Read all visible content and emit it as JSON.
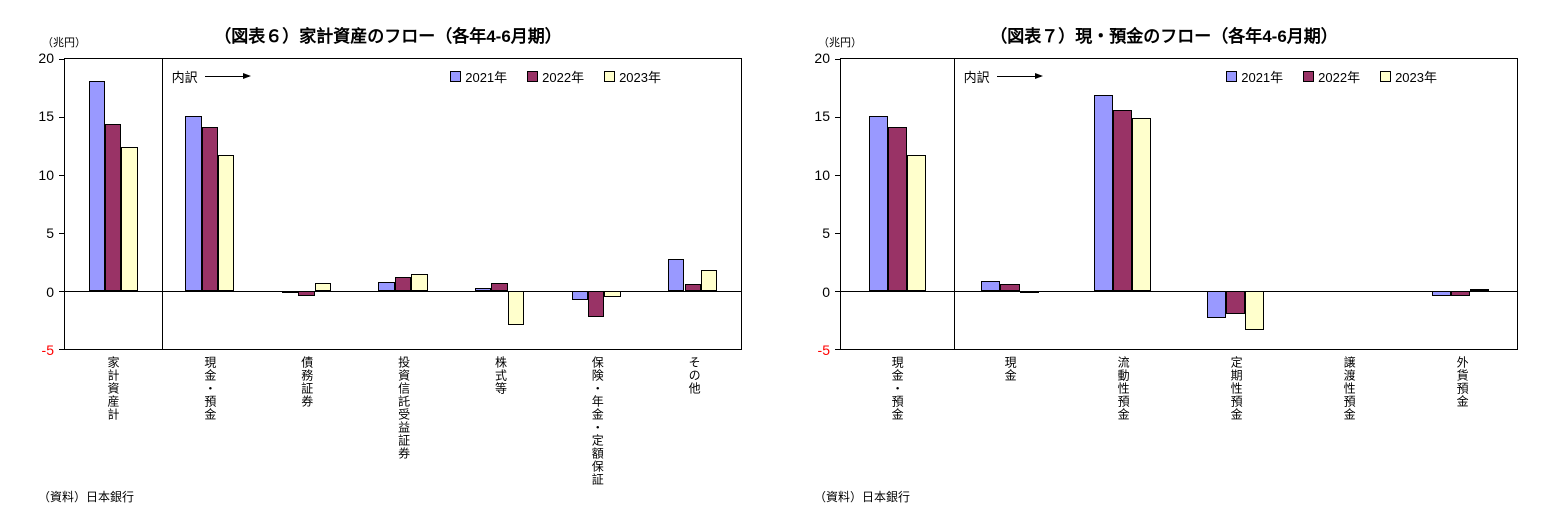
{
  "chart_data": [
    {
      "type": "bar",
      "title": "（図表６）家計資産のフロー（各年4-6月期）",
      "unit_label": "（兆円）",
      "breakdown_label": "内訳",
      "source": "（資料）日本銀行",
      "grid": false,
      "legend_position": "top-right",
      "ylim": [
        -5,
        20
      ],
      "yticks": [
        20,
        15,
        10,
        5,
        0,
        -5
      ],
      "categories": [
        "家計資産計",
        "現金・預金",
        "債務証券",
        "投資信託受益証券",
        "株式等",
        "保険・年金・定額保証",
        "その他"
      ],
      "series": [
        {
          "name": "2021年",
          "color": "#9999FF",
          "values": [
            18.1,
            15.1,
            -0.1,
            0.8,
            0.3,
            -0.8,
            2.8
          ]
        },
        {
          "name": "2022年",
          "color": "#993366",
          "values": [
            14.4,
            14.1,
            -0.4,
            1.2,
            0.7,
            -2.2,
            0.6
          ]
        },
        {
          "name": "2023年",
          "color": "#FFFFCC",
          "values": [
            12.4,
            11.7,
            0.7,
            1.5,
            -2.9,
            -0.5,
            1.8
          ]
        }
      ]
    },
    {
      "type": "bar",
      "title": "（図表７）現・預金のフロー（各年4-6月期）",
      "unit_label": "（兆円）",
      "breakdown_label": "内訳",
      "source": "（資料）日本銀行",
      "grid": false,
      "legend_position": "top-right",
      "ylim": [
        -5,
        20
      ],
      "yticks": [
        20,
        15,
        10,
        5,
        0,
        -5
      ],
      "categories": [
        "現金・預金",
        "現金",
        "流動性預金",
        "定期性預金",
        "譲渡性預金",
        "外貨預金"
      ],
      "series": [
        {
          "name": "2021年",
          "color": "#9999FF",
          "values": [
            15.1,
            0.9,
            16.9,
            -2.3,
            0.0,
            -0.4
          ]
        },
        {
          "name": "2022年",
          "color": "#993366",
          "values": [
            14.1,
            0.6,
            15.6,
            -2.0,
            0.0,
            -0.4
          ]
        },
        {
          "name": "2023年",
          "color": "#FFFFCC",
          "values": [
            11.7,
            -0.1,
            14.9,
            -3.4,
            0.0,
            0.2
          ]
        }
      ]
    }
  ]
}
